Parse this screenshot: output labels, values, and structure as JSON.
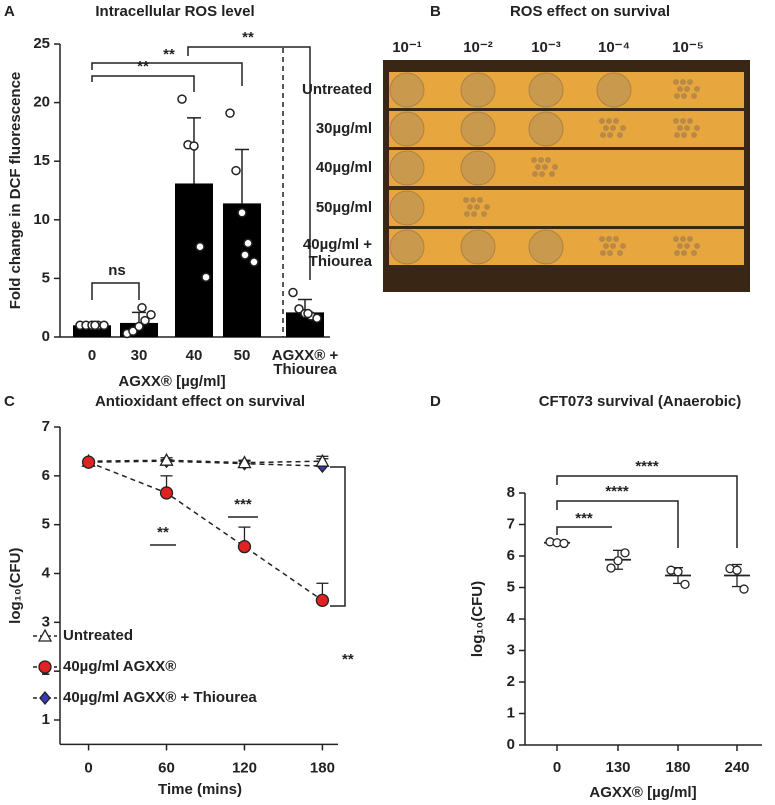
{
  "chart_data": [
    {
      "type": "bar",
      "panel": "A",
      "title": "Intracellular ROS level",
      "y_label": "Fold change in DCF fluorescence",
      "x_label": "AGXX® [µg/ml]",
      "categories": [
        "0",
        "30",
        "40",
        "50",
        [
          "AGXX® +",
          "Thiourea"
        ]
      ],
      "values": [
        1.0,
        1.2,
        13.1,
        11.4,
        2.1
      ],
      "errors": [
        0.1,
        0.9,
        5.6,
        4.6,
        1.1
      ],
      "points": [
        [
          1.0,
          1.0,
          1.0,
          1.0,
          1.0,
          1.0
        ],
        [
          0.3,
          0.5,
          0.9,
          1.4,
          1.9,
          2.5
        ],
        [
          20.3,
          16.4,
          16.3,
          7.7,
          5.1
        ],
        [
          19.1,
          14.2,
          10.6,
          8.0,
          6.4,
          7.0
        ],
        [
          3.8,
          2.4,
          2.0,
          1.8,
          1.6,
          2.0
        ]
      ],
      "color": "#000000",
      "ylim": [
        0,
        25
      ],
      "yticks": [
        0,
        5,
        10,
        15,
        20,
        25
      ],
      "annotations": [
        "ns",
        "**",
        "**",
        "**"
      ]
    },
    {
      "type": "image",
      "panel": "B",
      "title": "ROS effect on survival",
      "column_labels": [
        "10⁻¹",
        "10⁻²",
        "10⁻³",
        "10⁻⁴",
        "10⁻⁵"
      ],
      "row_labels": [
        "Untreated",
        "30µg/ml",
        "40µg/ml",
        "50µg/ml",
        [
          "40µg/ml +",
          "Thiourea"
        ]
      ]
    },
    {
      "type": "line",
      "panel": "C",
      "title": "Antioxidant effect on survival",
      "y_label": "log₁₀(CFU)",
      "x_label": "Time (mins)",
      "x": [
        0,
        60,
        120,
        180
      ],
      "xlim": [
        -22,
        192
      ],
      "xticks": [
        0,
        60,
        120,
        180
      ],
      "ylim": [
        0.5,
        7
      ],
      "yticks": [
        1,
        2,
        3,
        4,
        5,
        6,
        7
      ],
      "series": [
        {
          "name": "Untreated",
          "color": "#ffffff",
          "marker": "triangle",
          "values": [
            6.3,
            6.32,
            6.27,
            6.3
          ],
          "errors": [
            0,
            0.05,
            0.05,
            0.1
          ]
        },
        {
          "name": "40µg/ml AGXX®",
          "color": "#e02222",
          "marker": "circle",
          "values": [
            6.28,
            5.65,
            4.55,
            3.45
          ],
          "errors": [
            0,
            0.35,
            0.4,
            0.35
          ]
        },
        {
          "name": "40µg/ml AGXX® + Thiourea",
          "color": "#3a3ab4",
          "marker": "diamond",
          "values": [
            6.28,
            6.3,
            6.25,
            6.2
          ],
          "errors": [
            0,
            0.03,
            0.05,
            0.15
          ]
        }
      ],
      "annotations": [
        "**",
        "***",
        "**"
      ]
    },
    {
      "type": "dot",
      "panel": "D",
      "title": "CFT073 survival (Anaerobic)",
      "y_label": "log₁₀(CFU)",
      "x_label": "AGXX® [µg/ml]",
      "categories": [
        "0",
        "130",
        "180",
        "240"
      ],
      "values": [
        6.42,
        5.88,
        5.38,
        5.38
      ],
      "errors": [
        0.05,
        0.3,
        0.25,
        0.35
      ],
      "points": [
        [
          6.45,
          6.42,
          6.4
        ],
        [
          5.62,
          5.85,
          6.1
        ],
        [
          5.55,
          5.5,
          5.1
        ],
        [
          5.6,
          5.55,
          4.95
        ]
      ],
      "ylim": [
        0,
        8
      ],
      "yticks": [
        0,
        1,
        2,
        3,
        4,
        5,
        6,
        7,
        8
      ],
      "annotations": [
        "***",
        "****",
        "****"
      ]
    }
  ]
}
